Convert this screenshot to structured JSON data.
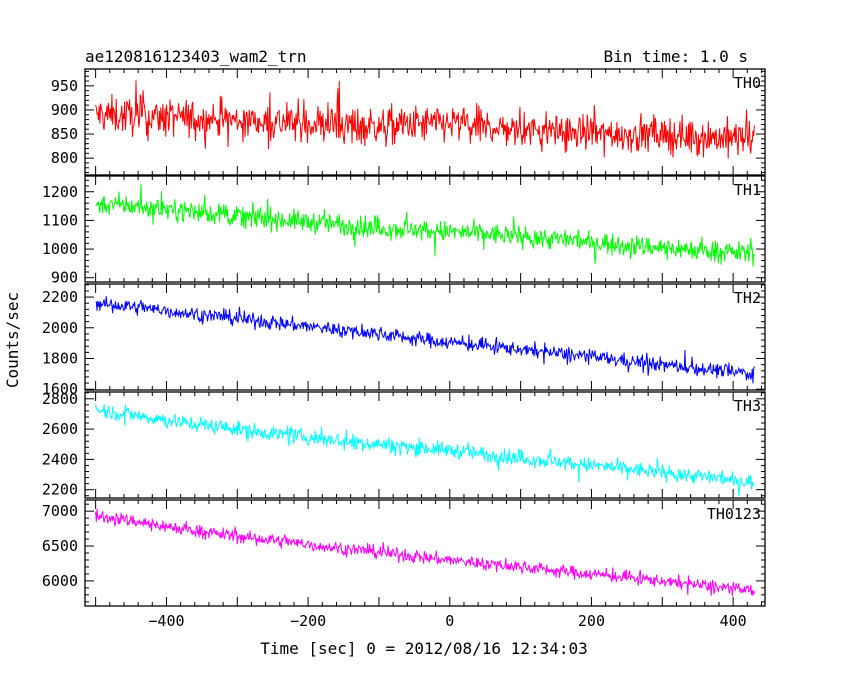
{
  "chart_data": {
    "type": "line",
    "title": "ae120816123403_wam2_trn",
    "subtitle": "Bin time: 1.0 s",
    "xlabel": "Time [sec] 0 = 2012/08/16 12:34:03",
    "ylabel": "Counts/sec",
    "xlim": [
      -515,
      445
    ],
    "x_ticks": [
      -400,
      -200,
      0,
      200,
      400
    ],
    "x_range_data": [
      -500,
      430
    ],
    "panels": [
      {
        "name": "TH0",
        "color": "#ff0000",
        "ylim": [
          765,
          985
        ],
        "y_ticks": [
          800,
          850,
          900,
          950
        ],
        "trend_x": [
          -500,
          -400,
          -300,
          -200,
          -100,
          0,
          100,
          200,
          300,
          430
        ],
        "trend_y": [
          890,
          885,
          878,
          872,
          866,
          872,
          858,
          852,
          848,
          840
        ],
        "noise": 40
      },
      {
        "name": "TH1",
        "color": "#00ff00",
        "ylim": [
          885,
          1255
        ],
        "y_ticks": [
          900,
          1000,
          1100,
          1200
        ],
        "trend_x": [
          -500,
          -400,
          -300,
          -200,
          -100,
          0,
          100,
          200,
          300,
          430
        ],
        "trend_y": [
          1160,
          1140,
          1115,
          1095,
          1075,
          1060,
          1045,
          1025,
          1005,
          985
        ],
        "noise": 38
      },
      {
        "name": "TH2",
        "color": "#0000ff",
        "ylim": [
          1595,
          2285
        ],
        "y_ticks": [
          1600,
          1800,
          2000,
          2200
        ],
        "trend_x": [
          -500,
          -400,
          -300,
          -200,
          -100,
          0,
          100,
          200,
          300,
          430
        ],
        "trend_y": [
          2160,
          2110,
          2060,
          2010,
          1960,
          1905,
          1860,
          1810,
          1760,
          1700
        ],
        "noise": 48
      },
      {
        "name": "TH3",
        "color": "#00ffff",
        "ylim": [
          2145,
          2845
        ],
        "y_ticks": [
          2200,
          2400,
          2600,
          2800
        ],
        "trend_x": [
          -500,
          -400,
          -300,
          -200,
          -100,
          0,
          100,
          200,
          300,
          430
        ],
        "trend_y": [
          2730,
          2660,
          2600,
          2545,
          2500,
          2460,
          2410,
          2360,
          2315,
          2250
        ],
        "noise": 52
      },
      {
        "name": "TH0123",
        "color": "#ff00ff",
        "ylim": [
          5640,
          7160
        ],
        "y_ticks": [
          6000,
          6500,
          7000
        ],
        "trend_x": [
          -500,
          -400,
          -300,
          -200,
          -100,
          0,
          100,
          200,
          300,
          430
        ],
        "trend_y": [
          6950,
          6780,
          6640,
          6520,
          6410,
          6300,
          6200,
          6100,
          6000,
          5850
        ],
        "noise": 95
      }
    ]
  }
}
